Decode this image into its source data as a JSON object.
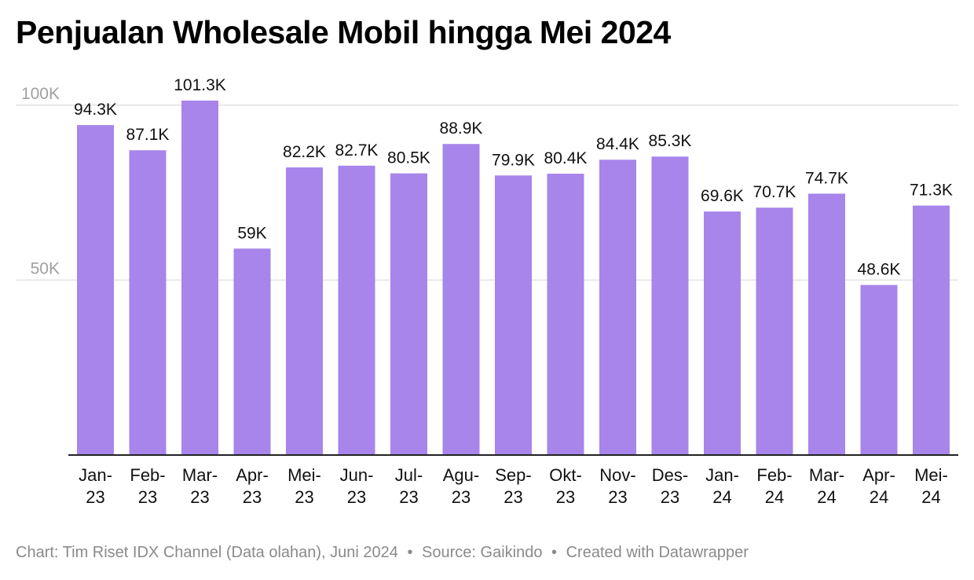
{
  "title": "Penjualan Wholesale Mobil hingga Mei 2024",
  "footer": {
    "chart_credit": "Chart: Tim Riset IDX Channel (Data olahan), Juni 2024",
    "source": "Source: Gaikindo",
    "created_with": "Created with Datawrapper",
    "separator": "•"
  },
  "colors": {
    "bar": "#a785ea",
    "gridline": "#e2e2e2",
    "axis": "#222222",
    "tick_label": "#a0a0a0",
    "text": "#111111"
  },
  "chart_data": {
    "type": "bar",
    "categories": [
      [
        "Jan-",
        "23"
      ],
      [
        "Feb-",
        "23"
      ],
      [
        "Mar-",
        "23"
      ],
      [
        "Apr-",
        "23"
      ],
      [
        "Mei-",
        "23"
      ],
      [
        "Jun-",
        "23"
      ],
      [
        "Jul-",
        "23"
      ],
      [
        "Agu-",
        "23"
      ],
      [
        "Sep-",
        "23"
      ],
      [
        "Okt-",
        "23"
      ],
      [
        "Nov-",
        "23"
      ],
      [
        "Des-",
        "23"
      ],
      [
        "Jan-",
        "24"
      ],
      [
        "Feb-",
        "24"
      ],
      [
        "Mar-",
        "24"
      ],
      [
        "Apr-",
        "24"
      ],
      [
        "Mei-",
        "24"
      ]
    ],
    "values": [
      94.3,
      87.1,
      101.3,
      59,
      82.2,
      82.7,
      80.5,
      88.9,
      79.9,
      80.4,
      84.4,
      85.3,
      69.6,
      70.7,
      74.7,
      48.6,
      71.3
    ],
    "value_labels": [
      "94.3K",
      "87.1K",
      "101.3K",
      "59K",
      "82.2K",
      "82.7K",
      "80.5K",
      "88.9K",
      "79.9K",
      "80.4K",
      "84.4K",
      "85.3K",
      "69.6K",
      "70.7K",
      "74.7K",
      "48.6K",
      "71.3K"
    ],
    "y_unit": "thousand units",
    "ylim": [
      0,
      101.3
    ],
    "yticks": [
      {
        "value": 50,
        "label": "50K"
      },
      {
        "value": 100,
        "label": "100K"
      }
    ],
    "grid": true,
    "legend": "none"
  }
}
